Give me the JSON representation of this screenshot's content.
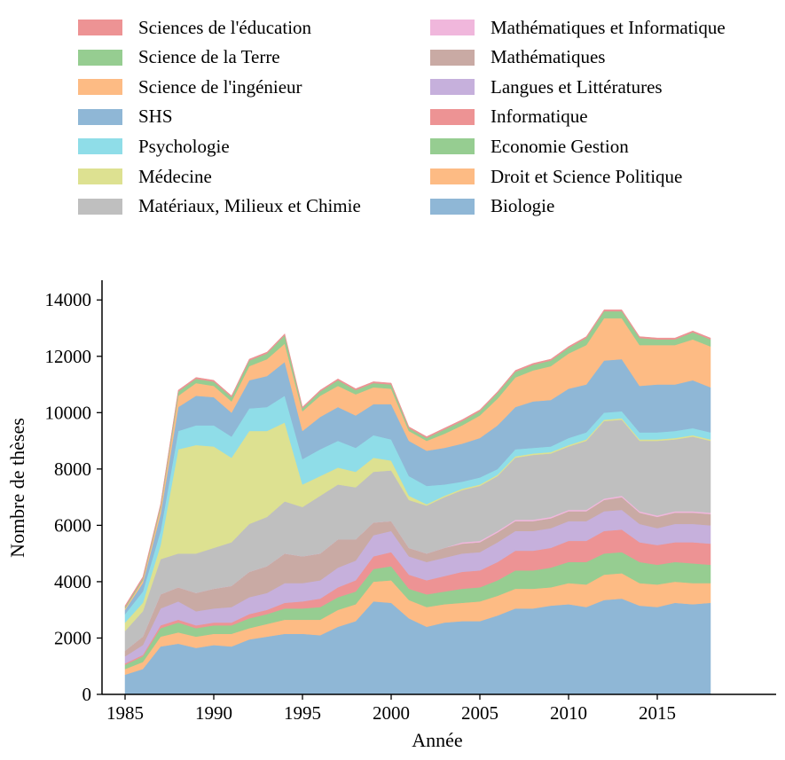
{
  "chart_data": {
    "type": "area",
    "stacked": true,
    "xlabel": "Année",
    "ylabel": "Nombre de thèses",
    "xlim": [
      1983.7,
      2021.7
    ],
    "ylim": [
      0,
      14700
    ],
    "x_ticks": [
      1985,
      1990,
      1995,
      2000,
      2005,
      2010,
      2015
    ],
    "y_ticks": [
      0,
      2000,
      4000,
      6000,
      8000,
      10000,
      12000,
      14000
    ],
    "legend_position": "top, two columns",
    "x": [
      1985,
      1986,
      1987,
      1988,
      1989,
      1990,
      1991,
      1992,
      1993,
      1994,
      1995,
      1996,
      1997,
      1998,
      1999,
      2000,
      2001,
      2002,
      2003,
      2004,
      2005,
      2006,
      2007,
      2008,
      2009,
      2010,
      2011,
      2012,
      2013,
      2014,
      2015,
      2016,
      2017,
      2018
    ],
    "series": [
      {
        "name": "Biologie",
        "color": "#8fb7d6",
        "values": [
          700,
          900,
          1700,
          1800,
          1650,
          1750,
          1700,
          1950,
          2050,
          2150,
          2150,
          2100,
          2400,
          2600,
          3300,
          3250,
          2700,
          2400,
          2550,
          2600,
          2600,
          2800,
          3050,
          3050,
          3150,
          3200,
          3100,
          3350,
          3400,
          3150,
          3100,
          3250,
          3200,
          3250
        ]
      },
      {
        "name": "Droit et Science Politique",
        "color": "#fdbb84",
        "values": [
          200,
          250,
          350,
          400,
          400,
          400,
          450,
          400,
          450,
          500,
          500,
          550,
          600,
          600,
          700,
          800,
          650,
          700,
          650,
          650,
          700,
          700,
          700,
          700,
          650,
          750,
          800,
          900,
          900,
          800,
          800,
          750,
          750,
          700
        ]
      },
      {
        "name": "Economie Gestion",
        "color": "#96cd91",
        "values": [
          150,
          200,
          300,
          350,
          300,
          300,
          300,
          350,
          350,
          400,
          400,
          450,
          450,
          450,
          450,
          500,
          400,
          450,
          450,
          500,
          500,
          550,
          650,
          650,
          700,
          750,
          800,
          750,
          750,
          750,
          700,
          700,
          700,
          650
        ]
      },
      {
        "name": "Informatique",
        "color": "#ed9394",
        "values": [
          50,
          50,
          100,
          100,
          100,
          100,
          100,
          150,
          150,
          200,
          250,
          300,
          350,
          400,
          450,
          500,
          500,
          500,
          550,
          600,
          600,
          650,
          700,
          700,
          700,
          750,
          750,
          800,
          800,
          700,
          700,
          700,
          750,
          750
        ]
      },
      {
        "name": "Langues et Littératures",
        "color": "#c6b0dc",
        "values": [
          250,
          350,
          600,
          650,
          500,
          500,
          550,
          600,
          600,
          700,
          650,
          650,
          700,
          700,
          750,
          750,
          650,
          650,
          650,
          650,
          650,
          700,
          700,
          700,
          700,
          700,
          700,
          700,
          700,
          650,
          600,
          650,
          650,
          650
        ]
      },
      {
        "name": "Mathématiques",
        "color": "#c9aaa4",
        "values": [
          200,
          300,
          500,
          500,
          650,
          700,
          750,
          900,
          950,
          1050,
          950,
          950,
          1000,
          750,
          450,
          350,
          300,
          300,
          350,
          350,
          350,
          350,
          350,
          350,
          350,
          350,
          350,
          400,
          450,
          400,
          400,
          400,
          400,
          400
        ]
      },
      {
        "name": "Mathématiques et Informatique",
        "color": "#f0b7dc",
        "values": [
          0,
          0,
          0,
          0,
          0,
          0,
          0,
          0,
          0,
          0,
          0,
          0,
          0,
          0,
          0,
          0,
          0,
          0,
          0,
          50,
          50,
          50,
          50,
          50,
          50,
          50,
          50,
          50,
          50,
          50,
          50,
          50,
          50,
          50
        ]
      },
      {
        "name": "Matériaux, Milieux et Chimie",
        "color": "#bfbfbf",
        "values": [
          700,
          900,
          1250,
          1200,
          1400,
          1450,
          1550,
          1700,
          1750,
          1850,
          1750,
          2050,
          1950,
          1850,
          1800,
          1800,
          1700,
          1700,
          1800,
          1850,
          1950,
          1950,
          2200,
          2300,
          2250,
          2250,
          2450,
          2750,
          2700,
          2500,
          2650,
          2550,
          2650,
          2550
        ]
      },
      {
        "name": "Médecine",
        "color": "#dde191",
        "values": [
          300,
          300,
          500,
          3700,
          3850,
          3600,
          3000,
          3300,
          3050,
          2800,
          800,
          700,
          600,
          550,
          500,
          350,
          150,
          50,
          50,
          50,
          50,
          50,
          50,
          50,
          50,
          50,
          50,
          50,
          50,
          50,
          50,
          50,
          50,
          50
        ]
      },
      {
        "name": "Psychologie",
        "color": "#8fdde8",
        "values": [
          300,
          400,
          500,
          650,
          700,
          750,
          750,
          800,
          850,
          950,
          900,
          950,
          950,
          850,
          800,
          750,
          700,
          650,
          400,
          250,
          250,
          200,
          250,
          200,
          200,
          250,
          250,
          250,
          250,
          250,
          250,
          250,
          250,
          250
        ]
      },
      {
        "name": "SHS",
        "color": "#8fb7d6",
        "values": [
          150,
          300,
          600,
          850,
          1050,
          1000,
          850,
          1000,
          1100,
          1200,
          1000,
          1150,
          1200,
          1150,
          1100,
          1250,
          1250,
          1250,
          1300,
          1350,
          1400,
          1550,
          1500,
          1650,
          1650,
          1750,
          1700,
          1850,
          1850,
          1650,
          1700,
          1650,
          1700,
          1600
        ]
      },
      {
        "name": "Science de l'ingénieur",
        "color": "#fdbb84",
        "values": [
          50,
          100,
          200,
          400,
          450,
          400,
          400,
          500,
          600,
          650,
          700,
          750,
          750,
          750,
          600,
          550,
          350,
          350,
          500,
          650,
          800,
          950,
          1050,
          1100,
          1200,
          1250,
          1400,
          1500,
          1450,
          1450,
          1400,
          1400,
          1450,
          1450
        ]
      },
      {
        "name": "Science de la Terre",
        "color": "#96cd91",
        "values": [
          50,
          60,
          100,
          150,
          150,
          150,
          150,
          200,
          200,
          300,
          100,
          150,
          200,
          150,
          150,
          150,
          100,
          100,
          150,
          150,
          150,
          200,
          200,
          200,
          200,
          200,
          250,
          250,
          250,
          250,
          200,
          200,
          250,
          250
        ]
      },
      {
        "name": "Sciences de l'éducation",
        "color": "#ed9394",
        "values": [
          50,
          60,
          50,
          50,
          50,
          50,
          50,
          50,
          50,
          50,
          50,
          50,
          50,
          50,
          50,
          50,
          50,
          50,
          50,
          50,
          50,
          50,
          50,
          50,
          50,
          50,
          50,
          50,
          50,
          50,
          50,
          50,
          50,
          50
        ]
      }
    ]
  }
}
